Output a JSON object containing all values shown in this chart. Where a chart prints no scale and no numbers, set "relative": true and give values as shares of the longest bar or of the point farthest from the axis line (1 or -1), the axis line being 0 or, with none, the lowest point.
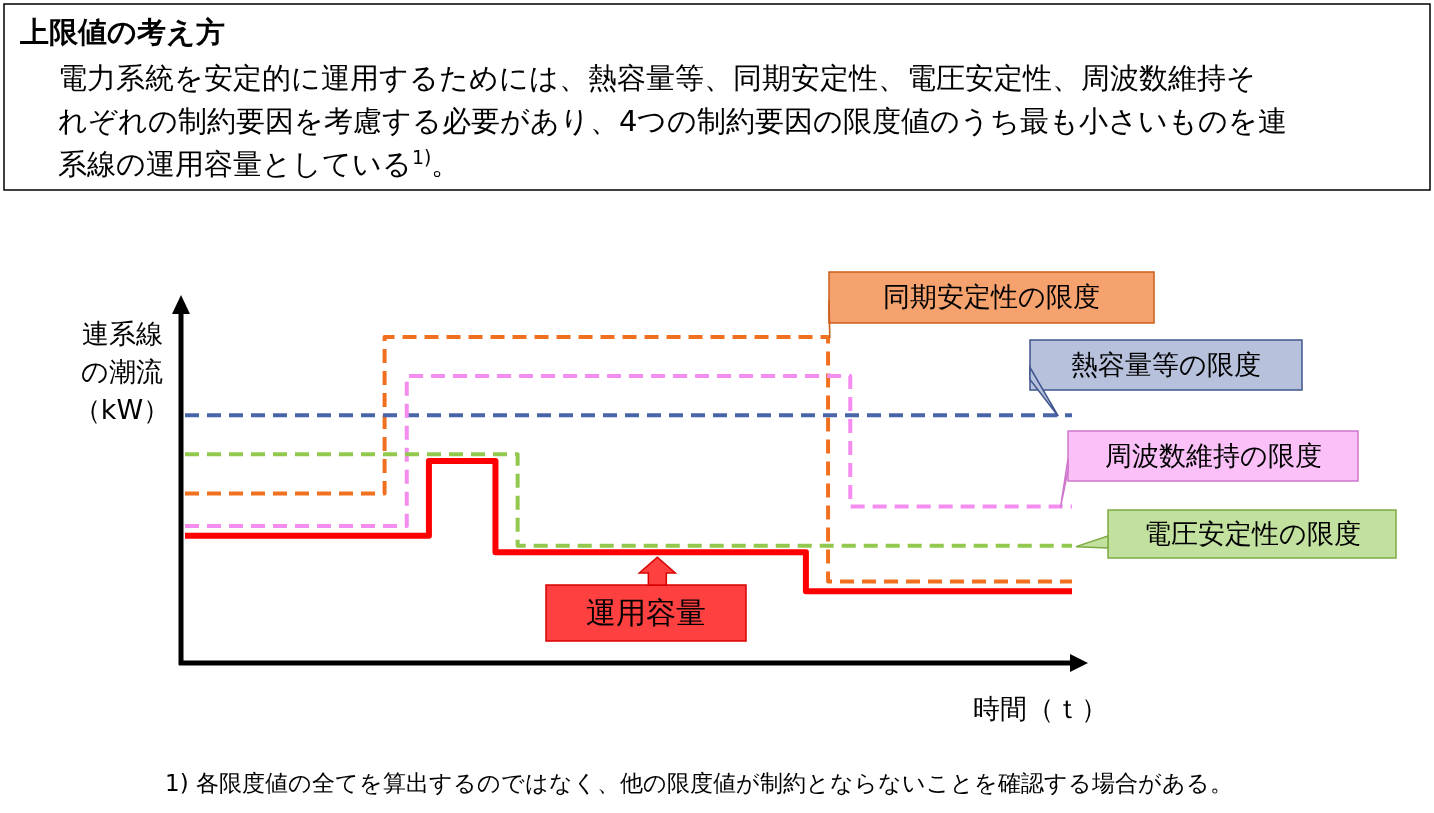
{
  "chart_data": {
    "type": "step",
    "relative": true,
    "title": "上限値の考え方",
    "subtitle": "電力系統を安定的に運用するためには、熱容量等、同期安定性、電圧安定性、周波数維持それぞれの制約要因を考慮する必要があり、4つの制約要因の限度値のうち最も小さいものを連系線の運用容量としている$^{1)}$。",
    "ylabel": "連系線の潮流（kW）",
    "xlabel": "時間（ｔ）",
    "annotations": [
      "1)  各限度値の全てを算出するのではなく、他の限度値が制約とならないことを確認する場合がある。"
    ],
    "categories": [
      null,
      null,
      null,
      null,
      null,
      null,
      null,
      null,
      null,
      null,
      null,
      null,
      null,
      null,
      null,
      null,
      null,
      null,
      null,
      null,
      null,
      null,
      null,
      null,
      null,
      null,
      null,
      null,
      null,
      null,
      null,
      null,
      null,
      null,
      null,
      null,
      null,
      null,
      null,
      null,
      null
    ],
    "series": [
      {
        "name": "同期安定性の限度",
        "color": "#f07020",
        "line_style": "dashed",
        "values": [
          0.52,
          0.52,
          0.52,
          0.52,
          0.52,
          0.52,
          0.52,
          0.52,
          0.52,
          1,
          1,
          1,
          1,
          1,
          1,
          1,
          1,
          1,
          1,
          1,
          1,
          1,
          1,
          1,
          1,
          1,
          1,
          1,
          1,
          0.25,
          0.25,
          0.25,
          0.25,
          0.25,
          0.25,
          0.25,
          0.25,
          0.25,
          0.25,
          0.25,
          0.25
        ]
      },
      {
        "name": "熱容量等の限度",
        "color": "#4a65a8",
        "line_style": "dashed",
        "values": [
          0.76,
          0.76,
          0.76,
          0.76,
          0.76,
          0.76,
          0.76,
          0.76,
          0.76,
          0.76,
          0.76,
          0.76,
          0.76,
          0.76,
          0.76,
          0.76,
          0.76,
          0.76,
          0.76,
          0.76,
          0.76,
          0.76,
          0.76,
          0.76,
          0.76,
          0.76,
          0.76,
          0.76,
          0.76,
          0.76,
          0.76,
          0.76,
          0.76,
          0.76,
          0.76,
          0.76,
          0.76,
          0.76,
          0.76,
          0.76,
          0.76
        ]
      },
      {
        "name": "周波数維持の限度",
        "color": "#f58cf0",
        "line_style": "dashed",
        "values": [
          0.42,
          0.42,
          0.42,
          0.42,
          0.42,
          0.42,
          0.42,
          0.42,
          0.42,
          0.42,
          0.88,
          0.88,
          0.88,
          0.88,
          0.88,
          0.88,
          0.88,
          0.88,
          0.88,
          0.88,
          0.88,
          0.88,
          0.88,
          0.88,
          0.88,
          0.88,
          0.88,
          0.88,
          0.88,
          0.88,
          0.48,
          0.48,
          0.48,
          0.48,
          0.48,
          0.48,
          0.48,
          0.48,
          0.48,
          0.48,
          0.48
        ]
      },
      {
        "name": "電圧安定性の限度",
        "color": "#92c84e",
        "line_style": "dashed",
        "values": [
          0.64,
          0.64,
          0.64,
          0.64,
          0.64,
          0.64,
          0.64,
          0.64,
          0.64,
          0.64,
          0.64,
          0.64,
          0.64,
          0.64,
          0.64,
          0.36,
          0.36,
          0.36,
          0.36,
          0.36,
          0.36,
          0.36,
          0.36,
          0.36,
          0.36,
          0.36,
          0.36,
          0.36,
          0.36,
          0.36,
          0.36,
          0.36,
          0.36,
          0.36,
          0.36,
          0.36,
          0.36,
          0.36,
          0.36,
          0.36,
          0.36
        ]
      },
      {
        "name": "運用容量",
        "color": "#ff0000",
        "line_style": "solid",
        "values": [
          0.39,
          0.39,
          0.39,
          0.39,
          0.39,
          0.39,
          0.39,
          0.39,
          0.39,
          0.39,
          0.39,
          0.62,
          0.62,
          0.62,
          0.34,
          0.34,
          0.34,
          0.34,
          0.34,
          0.34,
          0.34,
          0.34,
          0.34,
          0.34,
          0.34,
          0.34,
          0.34,
          0.34,
          0.22,
          0.22,
          0.22,
          0.22,
          0.22,
          0.22,
          0.22,
          0.22,
          0.22,
          0.22,
          0.22,
          0.22,
          0.22
        ]
      }
    ]
  }
}
